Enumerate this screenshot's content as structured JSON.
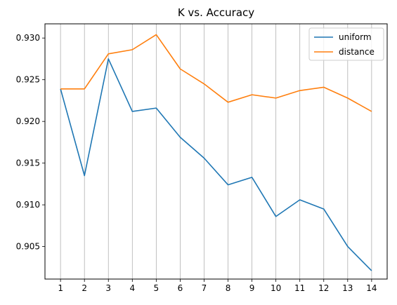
{
  "chart_data": {
    "type": "line",
    "title": "K vs. Accuracy",
    "xlabel": "",
    "ylabel": "",
    "x": [
      1,
      2,
      3,
      4,
      5,
      6,
      7,
      8,
      9,
      10,
      11,
      12,
      13,
      14
    ],
    "xlim": [
      0.35,
      14.65
    ],
    "ylim": [
      0.9011,
      0.9317
    ],
    "yticks": [
      0.905,
      0.91,
      0.915,
      0.92,
      0.925,
      0.93
    ],
    "ytick_labels": [
      "0.905",
      "0.910",
      "0.915",
      "0.920",
      "0.925",
      "0.930"
    ],
    "grid": "vertical",
    "legend_position": "top-right",
    "series": [
      {
        "name": "uniform",
        "color": "#1f77b4",
        "values": [
          0.9239,
          0.9135,
          0.9275,
          0.9212,
          0.9216,
          0.9181,
          0.9156,
          0.9124,
          0.9133,
          0.9086,
          0.9106,
          0.9095,
          0.905,
          0.9021
        ]
      },
      {
        "name": "distance",
        "color": "#ff7f0e",
        "values": [
          0.9239,
          0.9239,
          0.9281,
          0.9286,
          0.9304,
          0.9263,
          0.9245,
          0.9223,
          0.9232,
          0.9228,
          0.9237,
          0.9241,
          0.9228,
          0.9212
        ]
      }
    ]
  }
}
